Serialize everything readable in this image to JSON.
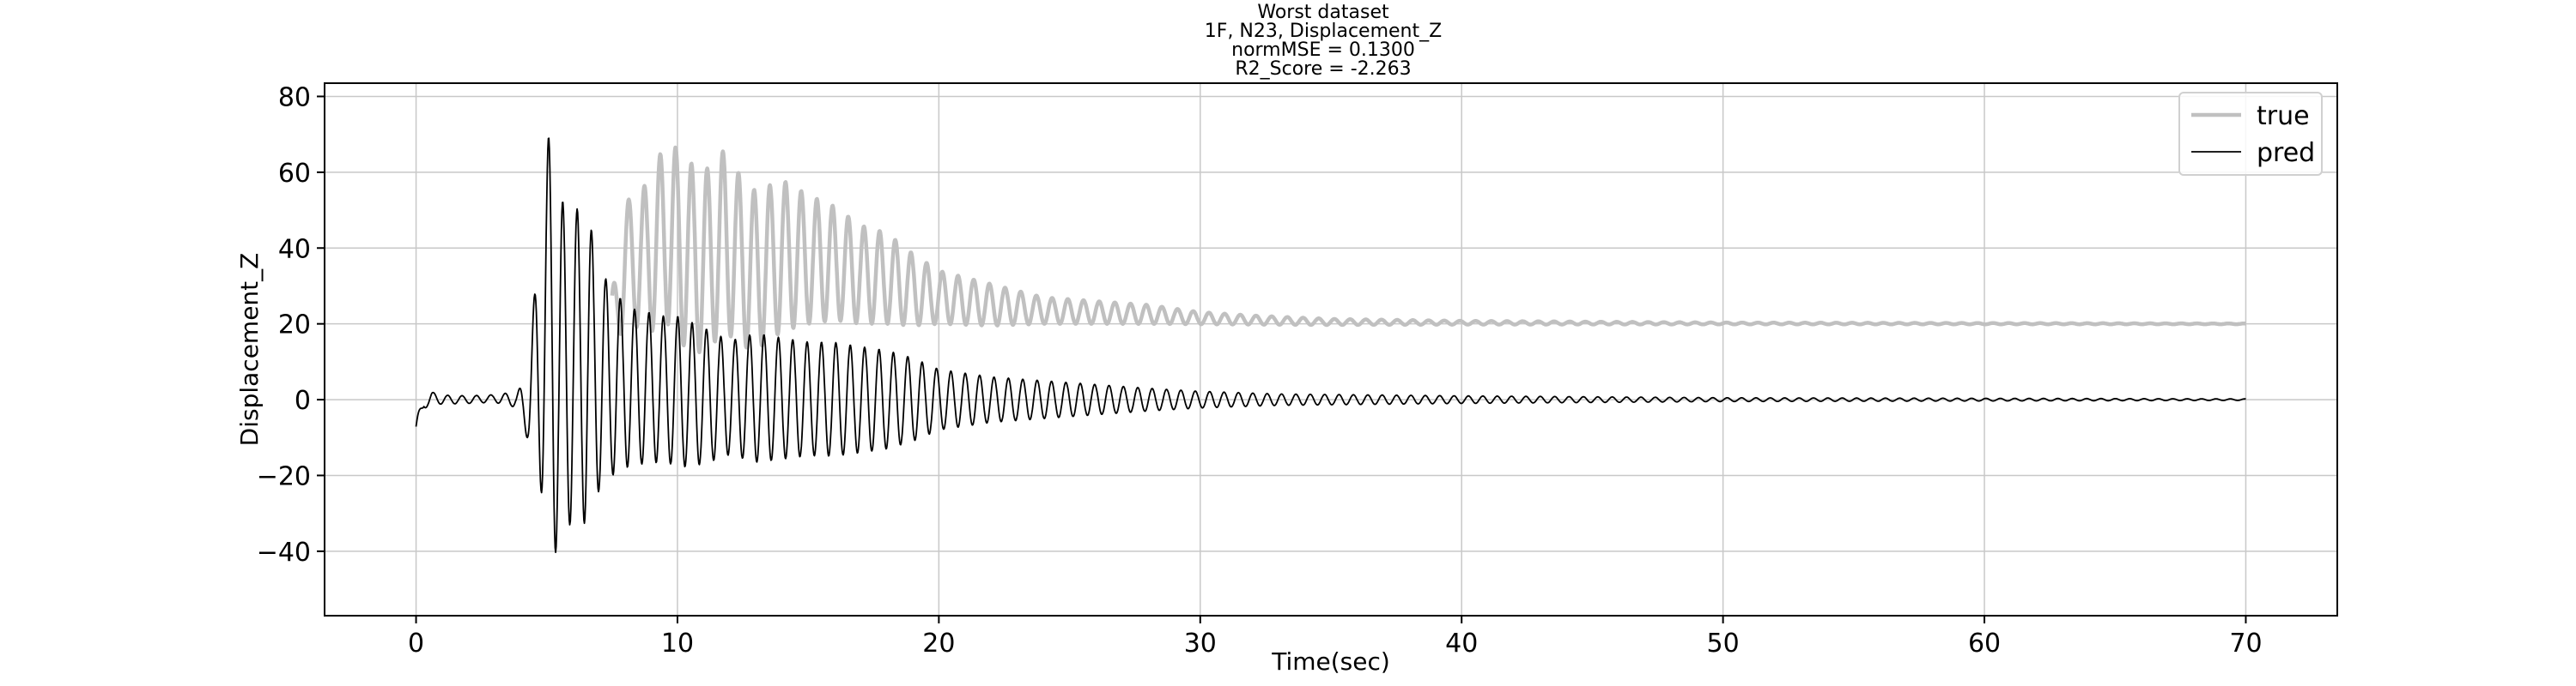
{
  "chart_data": {
    "type": "line",
    "title_lines": [
      "Worst dataset",
      "1F, N23, Displacement_Z",
      "normMSE = 0.1300",
      "R2_Score = -2.263"
    ],
    "xlabel": "Time(sec)",
    "ylabel": "Displacement_Z",
    "xlim": [
      -3.5,
      73.5
    ],
    "ylim": [
      -57,
      83.5
    ],
    "xticks": [
      0,
      10,
      20,
      30,
      40,
      50,
      60,
      70
    ],
    "yticks": [
      -40,
      -20,
      0,
      20,
      40,
      60,
      80
    ],
    "xtick_labels": [
      "0",
      "10",
      "20",
      "30",
      "40",
      "50",
      "60",
      "70"
    ],
    "ytick_labels": [
      "−40",
      "−20",
      "0",
      "20",
      "40",
      "60",
      "80"
    ],
    "grid": true,
    "legend_position": "top-right",
    "series": [
      {
        "name": "true",
        "color": "#c0c0c0",
        "style": "thick",
        "x": [
          7.5,
          8.0,
          9.0,
          9.7,
          10.0,
          11.0,
          11.8,
          12.5,
          13.0,
          14.0,
          15.0,
          16.0,
          17.0,
          18.0,
          19.0,
          20.0,
          22.0,
          24.0,
          26.0,
          28.0,
          30.0,
          32.0,
          35.0,
          40.0,
          50.0,
          70.0
        ],
        "y": [
          20,
          36,
          38,
          46,
          40,
          36,
          42,
          36,
          34,
          38,
          37,
          36,
          33,
          32,
          29,
          27,
          25,
          23.5,
          23,
          22.5,
          21.5,
          21,
          20.5,
          20.3,
          20.1,
          20
        ],
        "amplitude": [
          8,
          16,
          20,
          26,
          25,
          24,
          24,
          22,
          21,
          20,
          17,
          15,
          13,
          12,
          9.5,
          7,
          5.5,
          3.5,
          3,
          2.5,
          1.6,
          1.2,
          0.8,
          0.5,
          0.25,
          0.1
        ],
        "period_sec": 0.6
      },
      {
        "name": "pred",
        "color": "#000000",
        "style": "thin",
        "x": [
          0.0,
          0.3,
          0.6,
          1.0,
          2.0,
          3.0,
          3.8,
          4.3,
          4.6,
          5.0,
          5.2,
          5.5,
          6.0,
          6.5,
          7.0,
          7.5,
          8.0,
          8.5,
          9.0,
          9.5,
          10.0,
          11.0,
          12.0,
          13.0,
          14.0,
          15.0,
          16.0,
          17.0,
          18.0,
          19.0,
          20.0,
          22.0,
          24.0,
          26.0,
          28.0,
          30.0,
          33.0,
          40.0,
          50.0,
          70.0
        ],
        "y": [
          -8,
          -1,
          0.5,
          0,
          0,
          0.3,
          0,
          -3,
          10,
          15,
          20,
          5,
          10,
          9,
          6,
          4,
          4,
          3,
          3,
          3,
          2,
          1,
          0.5,
          0.5,
          0.3,
          0.2,
          0.1,
          0,
          0,
          0,
          0,
          0,
          0,
          0,
          0,
          0,
          0,
          0,
          0,
          0
        ],
        "amplitude": [
          3,
          1.5,
          1.5,
          1.2,
          1,
          1,
          2,
          8,
          25,
          50,
          58,
          48,
          40,
          42,
          30,
          24,
          22,
          20,
          20,
          19,
          20,
          18,
          15,
          17,
          16,
          15,
          15,
          14,
          13,
          11,
          8,
          6,
          5,
          4,
          3,
          2.2,
          1.5,
          1,
          0.5,
          0.2
        ],
        "period_sec": 0.55
      }
    ]
  }
}
